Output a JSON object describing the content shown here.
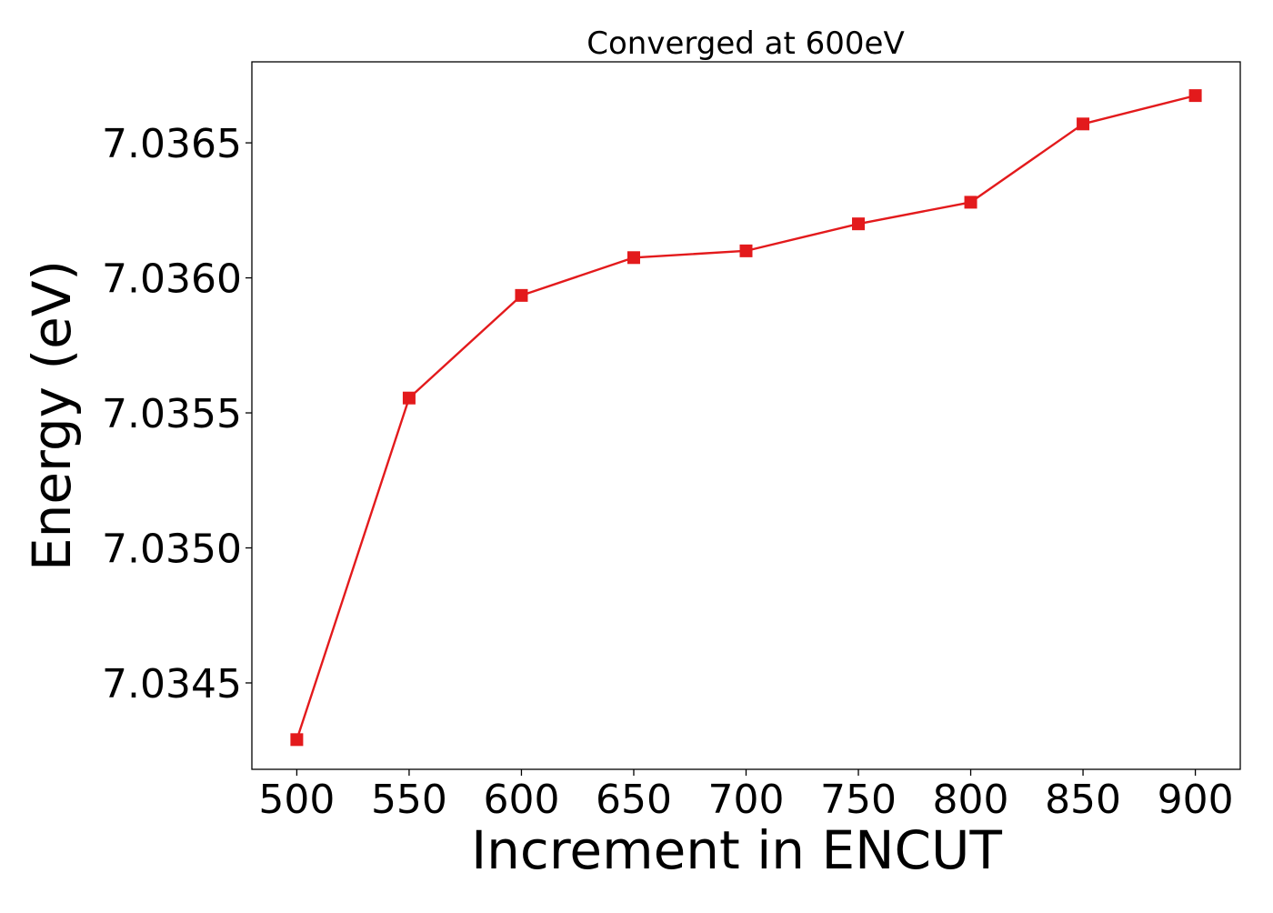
{
  "chart_data": {
    "type": "line",
    "title": "Converged at 600eV",
    "xlabel": "Increment in ENCUT",
    "ylabel": "Energy (eV)",
    "x": [
      500,
      550,
      600,
      650,
      700,
      750,
      800,
      850,
      900
    ],
    "series": [
      {
        "values": [
          7.03429,
          7.035555,
          7.035935,
          7.036075,
          7.0361,
          7.0362,
          7.03628,
          7.03657,
          7.036675
        ],
        "color": "#e31a1c",
        "marker": "square"
      }
    ],
    "xlim": [
      480,
      920
    ],
    "ylim": [
      7.03418,
      7.0368
    ],
    "xticks": [
      500,
      550,
      600,
      650,
      700,
      750,
      800,
      850,
      900
    ],
    "xtick_labels": [
      "500",
      "550",
      "600",
      "650",
      "700",
      "750",
      "800",
      "850",
      "900"
    ],
    "yticks": [
      7.0345,
      7.035,
      7.0355,
      7.036,
      7.0365
    ],
    "ytick_labels": [
      "7.0345",
      "7.0350",
      "7.0355",
      "7.0360",
      "7.0365"
    ],
    "grid": false,
    "legend": "none"
  }
}
